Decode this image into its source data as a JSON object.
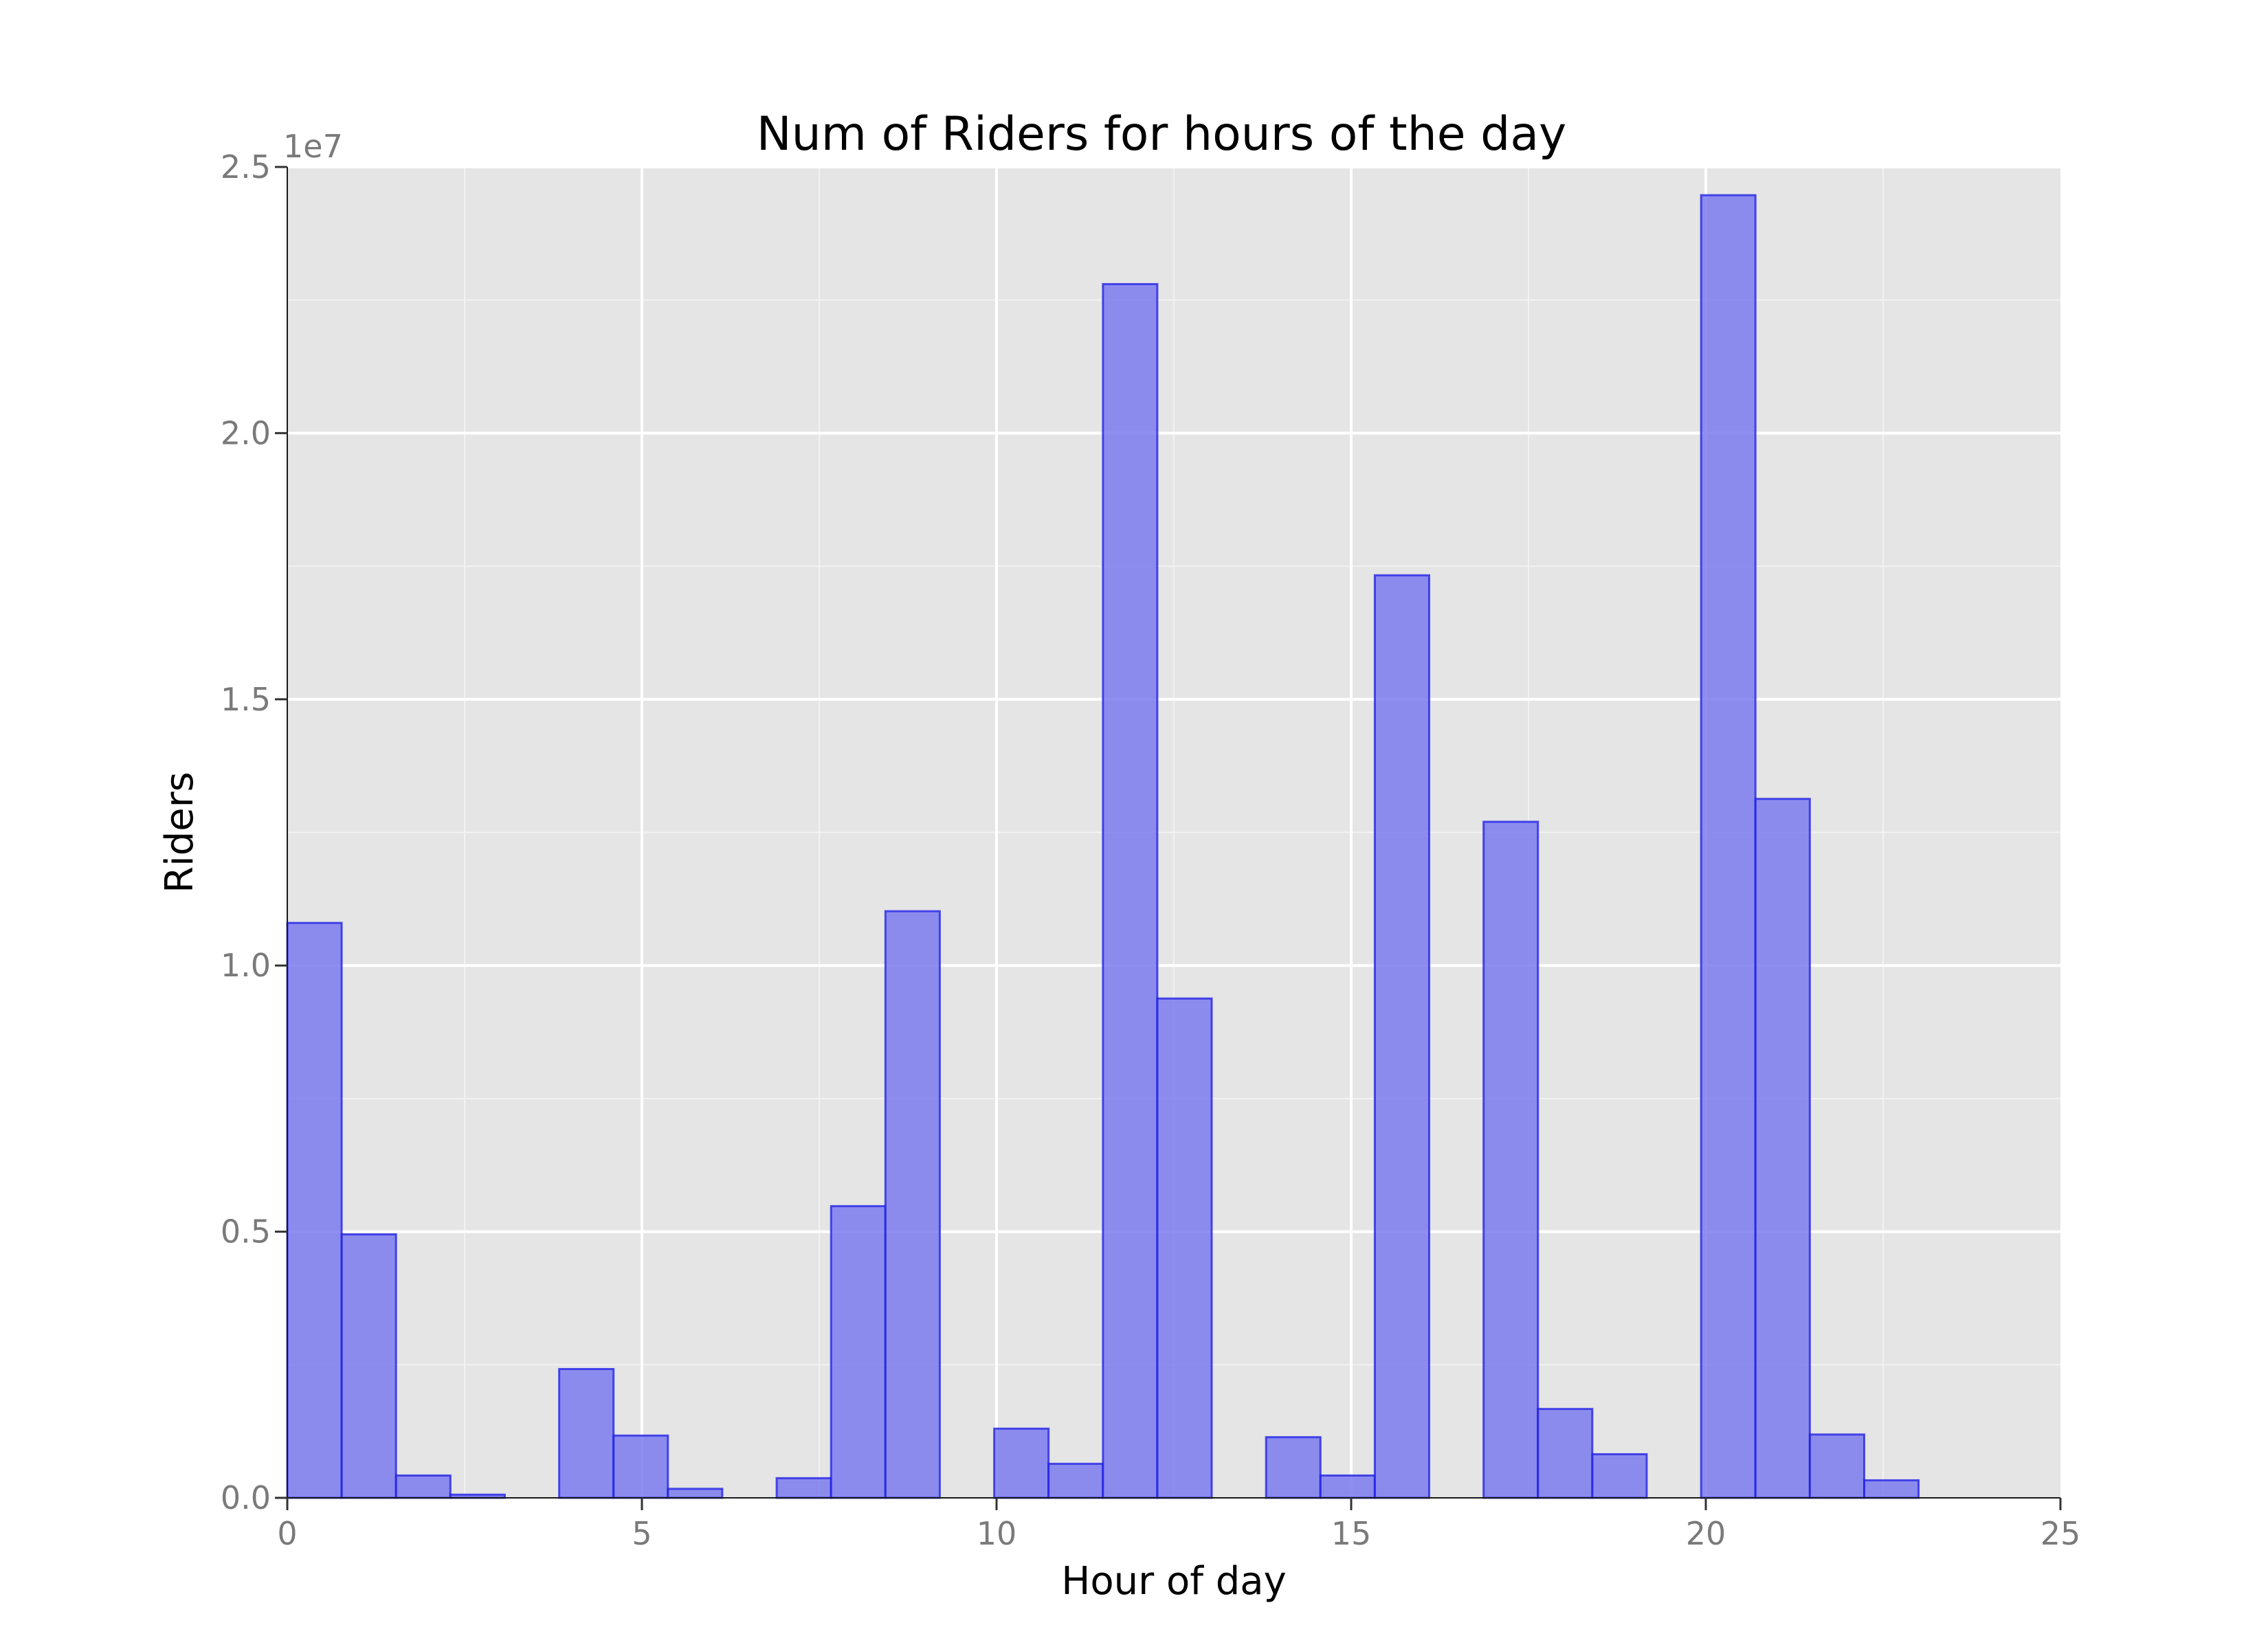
{
  "chart_data": {
    "type": "bar",
    "title": "Num of Riders for hours of the day",
    "xlabel": "Hour of day",
    "ylabel": "Riders",
    "y_offset_label": "1e7",
    "xlim": [
      0,
      25
    ],
    "ylim": [
      0,
      25000000
    ],
    "x_ticks": [
      0,
      5,
      10,
      15,
      20,
      25
    ],
    "x_tick_labels": [
      "0",
      "5",
      "10",
      "15",
      "20",
      "25"
    ],
    "y_ticks": [
      0,
      5000000,
      10000000,
      15000000,
      20000000,
      25000000
    ],
    "y_tick_labels": [
      "0.0",
      "0.5",
      "1.0",
      "1.5",
      "2.0",
      "2.5"
    ],
    "grid": true,
    "background_color": "#e5e5e5",
    "bar_fill_color": "#7b7bf0",
    "bar_edge_color": "#1c1ce6",
    "bin_width": 0.7667,
    "bins": [
      {
        "start": 0.0,
        "value": 10800000
      },
      {
        "start": 0.7667,
        "value": 4950000
      },
      {
        "start": 1.5333,
        "value": 420000
      },
      {
        "start": 2.3,
        "value": 60000
      },
      {
        "start": 3.0667,
        "value": 0
      },
      {
        "start": 3.8333,
        "value": 2420000
      },
      {
        "start": 4.6,
        "value": 1170000
      },
      {
        "start": 5.3667,
        "value": 170000
      },
      {
        "start": 6.1333,
        "value": 0
      },
      {
        "start": 6.9,
        "value": 370000
      },
      {
        "start": 7.6667,
        "value": 5480000
      },
      {
        "start": 8.4333,
        "value": 11020000
      },
      {
        "start": 9.2,
        "value": 0
      },
      {
        "start": 9.9667,
        "value": 1300000
      },
      {
        "start": 10.7333,
        "value": 640000
      },
      {
        "start": 11.5,
        "value": 22800000
      },
      {
        "start": 12.2667,
        "value": 9380000
      },
      {
        "start": 13.0333,
        "value": 0
      },
      {
        "start": 13.8,
        "value": 1140000
      },
      {
        "start": 14.5667,
        "value": 420000
      },
      {
        "start": 15.3333,
        "value": 17330000
      },
      {
        "start": 16.1,
        "value": 0
      },
      {
        "start": 16.8667,
        "value": 12700000
      },
      {
        "start": 17.6333,
        "value": 1670000
      },
      {
        "start": 18.4,
        "value": 820000
      },
      {
        "start": 19.1667,
        "value": 0
      },
      {
        "start": 19.9333,
        "value": 24470000
      },
      {
        "start": 20.7,
        "value": 13130000
      },
      {
        "start": 21.4667,
        "value": 1190000
      },
      {
        "start": 22.2333,
        "value": 330000
      }
    ]
  }
}
